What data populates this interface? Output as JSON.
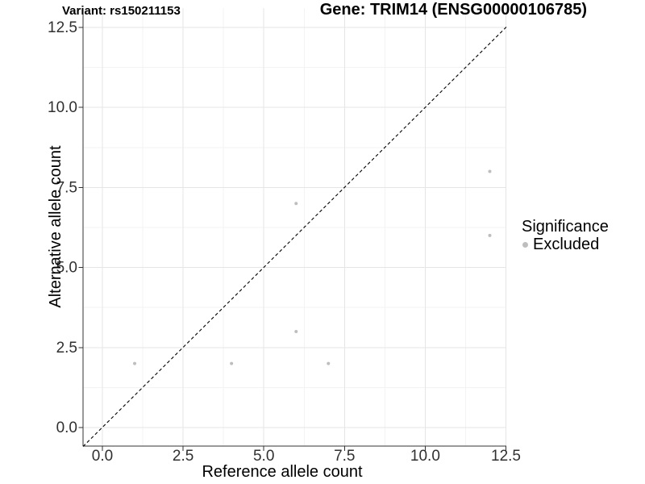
{
  "titles": {
    "left": "Variant: rs150211153",
    "right": "Gene: TRIM14 (ENSG00000106785)"
  },
  "legend": {
    "title": "Significance",
    "items": [
      {
        "label": "Excluded",
        "color": "#bebebe"
      }
    ]
  },
  "chart_data": {
    "type": "scatter",
    "title_left": "Variant: rs150211153",
    "title_right": "Gene: TRIM14 (ENSG00000106785)",
    "xlabel": "Reference allele count",
    "ylabel": "Alternative allele count",
    "xlim": [
      0,
      12.5
    ],
    "ylim": [
      0,
      12.5
    ],
    "xticks": [
      0,
      2.5,
      5,
      7.5,
      10,
      12.5
    ],
    "yticks": [
      0,
      2.5,
      5,
      7.5,
      10,
      12.5
    ],
    "xtick_labels": [
      "0.0",
      "2.5",
      "5.0",
      "7.5",
      "10.0",
      "12.5"
    ],
    "ytick_labels": [
      "0.0",
      "2.5",
      "5.0",
      "7.5",
      "10.0",
      "12.5"
    ],
    "minor_gridlines": [
      1.25,
      3.75,
      6.25,
      8.75,
      11.25
    ],
    "grid": "major+minor",
    "legend_position": "right",
    "series": [
      {
        "name": "Excluded",
        "color": "#bebebe",
        "points": [
          [
            1,
            2
          ],
          [
            4,
            2
          ],
          [
            6,
            3
          ],
          [
            6,
            7
          ],
          [
            7,
            2
          ],
          [
            12,
            6
          ],
          [
            12,
            8
          ]
        ]
      }
    ],
    "reference_line": {
      "type": "identity",
      "style": "dashed",
      "color": "#000000"
    }
  },
  "colors": {
    "grid_major": "#e5e5e5",
    "grid_minor": "#f3f3f3",
    "axis": "#333333",
    "tick_text": "#303030"
  }
}
